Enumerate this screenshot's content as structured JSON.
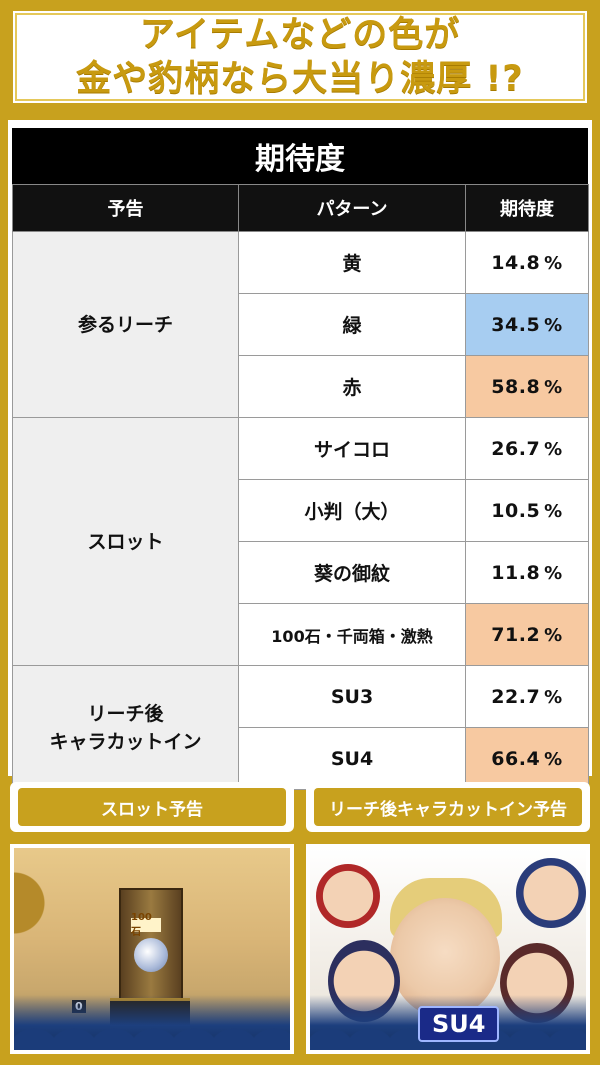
{
  "header": {
    "line1": "アイテムなどの色が",
    "line2": "金や豹柄なら大当り濃厚 !?"
  },
  "table": {
    "title": "期待度",
    "headers": [
      "予告",
      "パターン",
      "期待度"
    ],
    "groups": [
      {
        "name": "参るリーチ",
        "rows": [
          {
            "pattern": "黄",
            "rate": "14.8",
            "highlight": "none"
          },
          {
            "pattern": "緑",
            "rate": "34.5",
            "highlight": "blue"
          },
          {
            "pattern": "赤",
            "rate": "58.8",
            "highlight": "orange"
          }
        ]
      },
      {
        "name": "スロット",
        "rows": [
          {
            "pattern": "サイコロ",
            "rate": "26.7",
            "highlight": "none"
          },
          {
            "pattern": "小判（大）",
            "rate": "10.5",
            "highlight": "none"
          },
          {
            "pattern": "葵の御紋",
            "rate": "11.8",
            "highlight": "none"
          },
          {
            "pattern": "100石・千両箱・激熱",
            "rate": "71.2",
            "highlight": "orange"
          }
        ]
      },
      {
        "name_line1": "リーチ後",
        "name_line2": "キャラカットイン",
        "rows": [
          {
            "pattern": "SU3",
            "rate": "22.7",
            "highlight": "none"
          },
          {
            "pattern": "SU4",
            "rate": "66.4",
            "highlight": "orange"
          }
        ]
      }
    ],
    "percent": "%"
  },
  "banners": {
    "left": "スロット予告",
    "right": "リーチ後キャラカットイン予告"
  },
  "screens": {
    "left_sign": "100石",
    "left_counter": "0",
    "right_label": "SU4"
  },
  "colors": {
    "gold": "#c8a11e",
    "blue_highlight": "#a7cdf1",
    "orange_highlight": "#f7c9a1"
  }
}
